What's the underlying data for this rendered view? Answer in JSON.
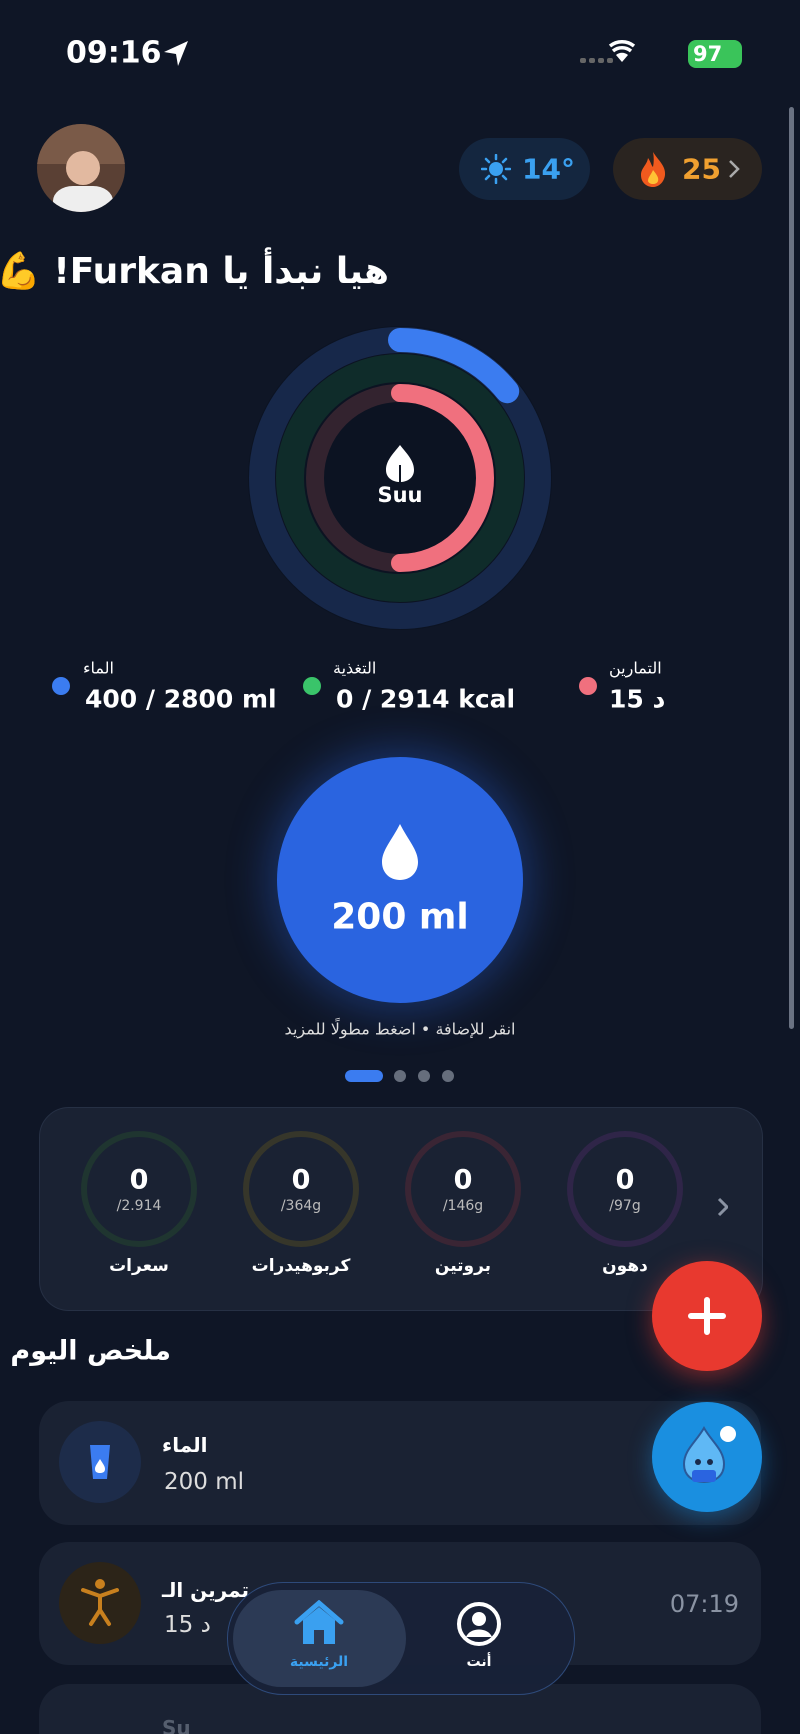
{
  "status_bar": {
    "time": "09:16",
    "battery": "97"
  },
  "header": {
    "weather": "14°",
    "streak": "25",
    "greeting": "هيا نبدأ يا Furkan! 💪"
  },
  "rings": {
    "center_label": "Suu"
  },
  "legend": [
    {
      "label": "الماء",
      "value": "400 / 2800 ml"
    },
    {
      "label": "التغذية",
      "value": "0 / 2914 kcal"
    },
    {
      "label": "التمارين",
      "value": "15 د"
    }
  ],
  "quick_add": {
    "amount": "200 ml",
    "hint": "انقر للإضافة • اضغط مطولًا للمزيد"
  },
  "macros": [
    {
      "value": "0",
      "goal": "/2.914",
      "label": "سعرات"
    },
    {
      "value": "0",
      "goal": "/364g",
      "label": "كربوهيدرات"
    },
    {
      "value": "0",
      "goal": "/146g",
      "label": "بروتين"
    },
    {
      "value": "0",
      "goal": "/97g",
      "label": "دهون"
    }
  ],
  "summary": {
    "title": "ملخص اليوم",
    "items": [
      {
        "title": "الماء",
        "value": "200 ml"
      },
      {
        "title": "تمرين الـ",
        "value": "15 د",
        "time": "07:19"
      },
      {
        "title": "Su"
      }
    ]
  },
  "nav": [
    {
      "label": "الرئيسية"
    },
    {
      "label": "أنت"
    }
  ]
}
